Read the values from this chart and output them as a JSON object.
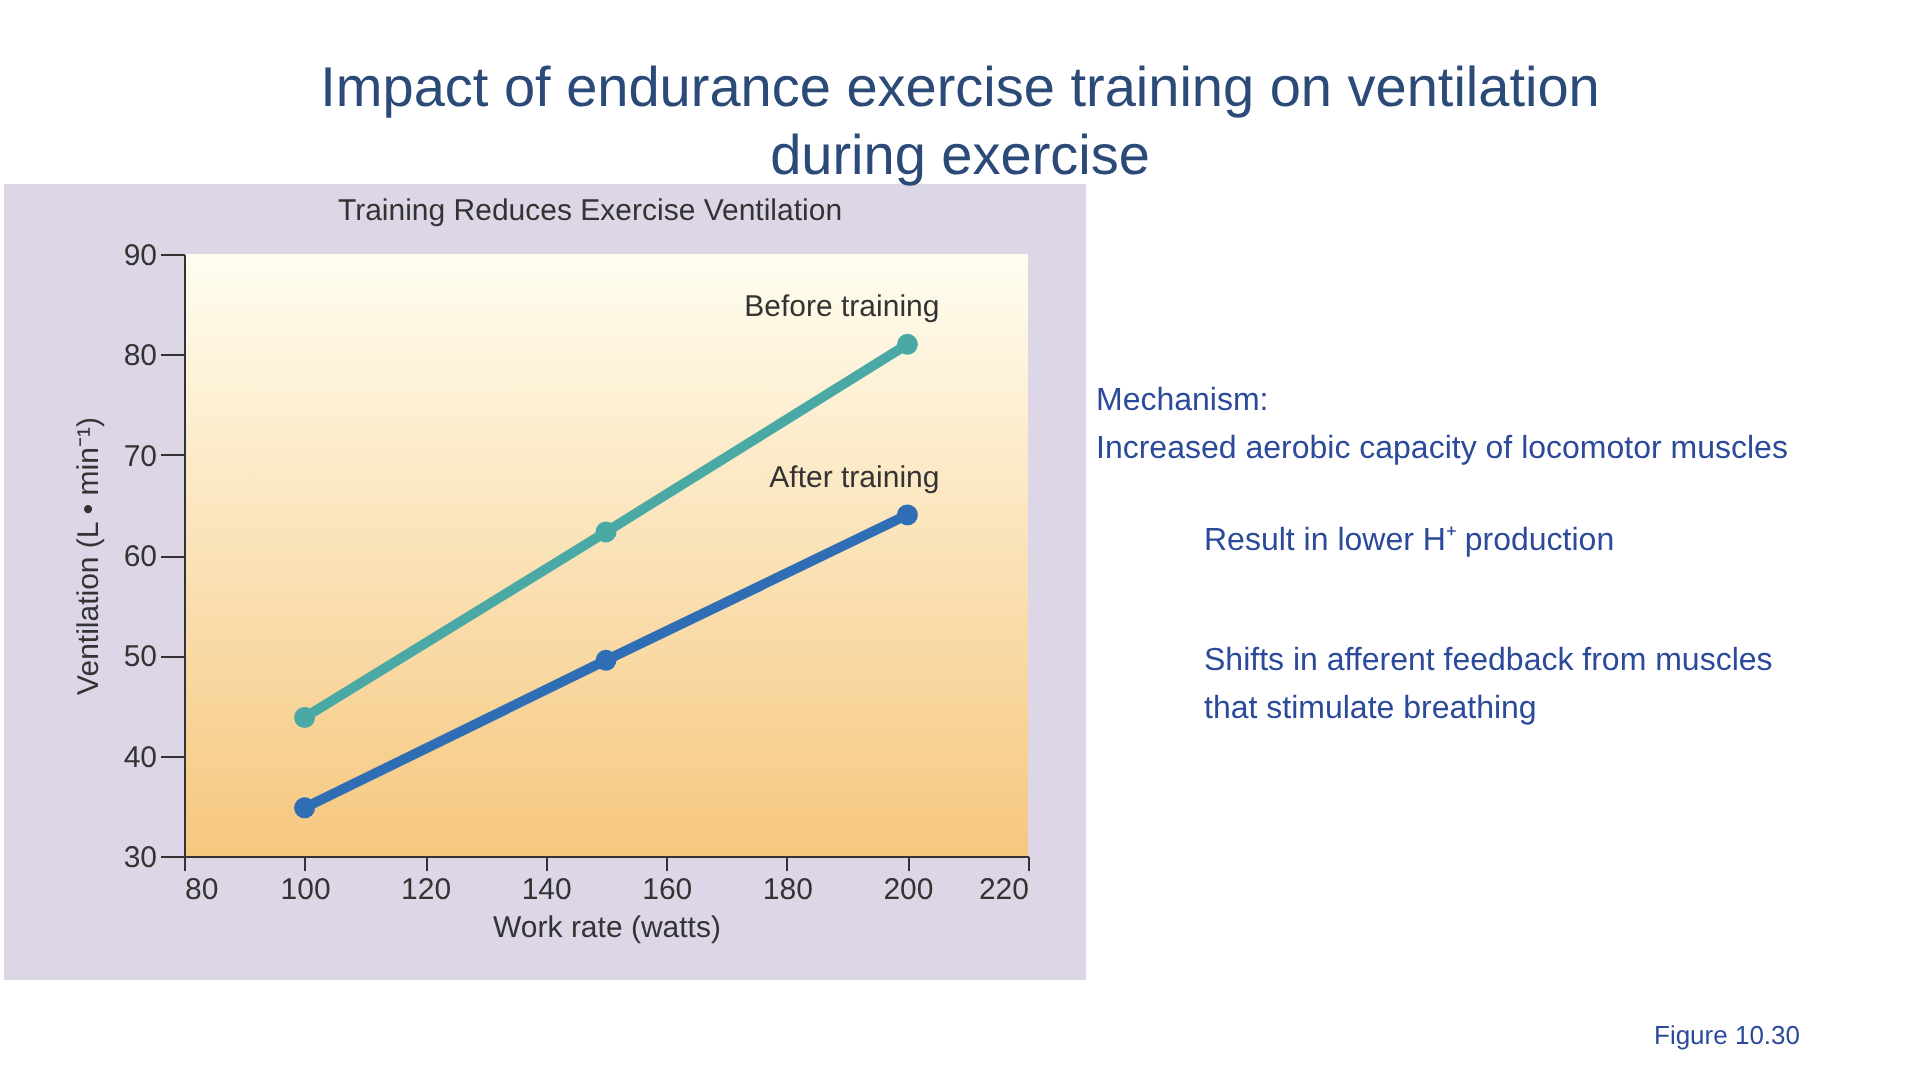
{
  "chart_data": {
    "type": "line",
    "title": "Impact of endurance exercise training on ventilation during exercise",
    "subtitle": "Training Reduces Exercise Ventilation",
    "xlabel": "Work rate (watts)",
    "ylabel": "Ventilation (L • min⁻¹)",
    "x": [
      100,
      150,
      200
    ],
    "series": [
      {
        "name": "Before training",
        "color": "#4aa9a5",
        "values": [
          43.8,
          62.3,
          81
        ]
      },
      {
        "name": "After training",
        "color": "#2f6db5",
        "values": [
          34.8,
          49.5,
          64
        ]
      }
    ],
    "xlim": [
      80,
      220
    ],
    "xticks": [
      80,
      100,
      120,
      140,
      160,
      180,
      200,
      220
    ],
    "ylim": [
      30,
      90
    ],
    "yticks": [
      30,
      40,
      50,
      60,
      70,
      80,
      90
    ],
    "marker": "circle",
    "line_style": "solid",
    "grid": false,
    "legend": false,
    "annotations": [
      "Mechanism:\nIncreased aerobic capacity of locomotor muscles",
      "Result in lower H⁺ production",
      "Shifts in afferent feedback from muscles\nthat stimulate breathing",
      "Figure 10.30"
    ]
  }
}
